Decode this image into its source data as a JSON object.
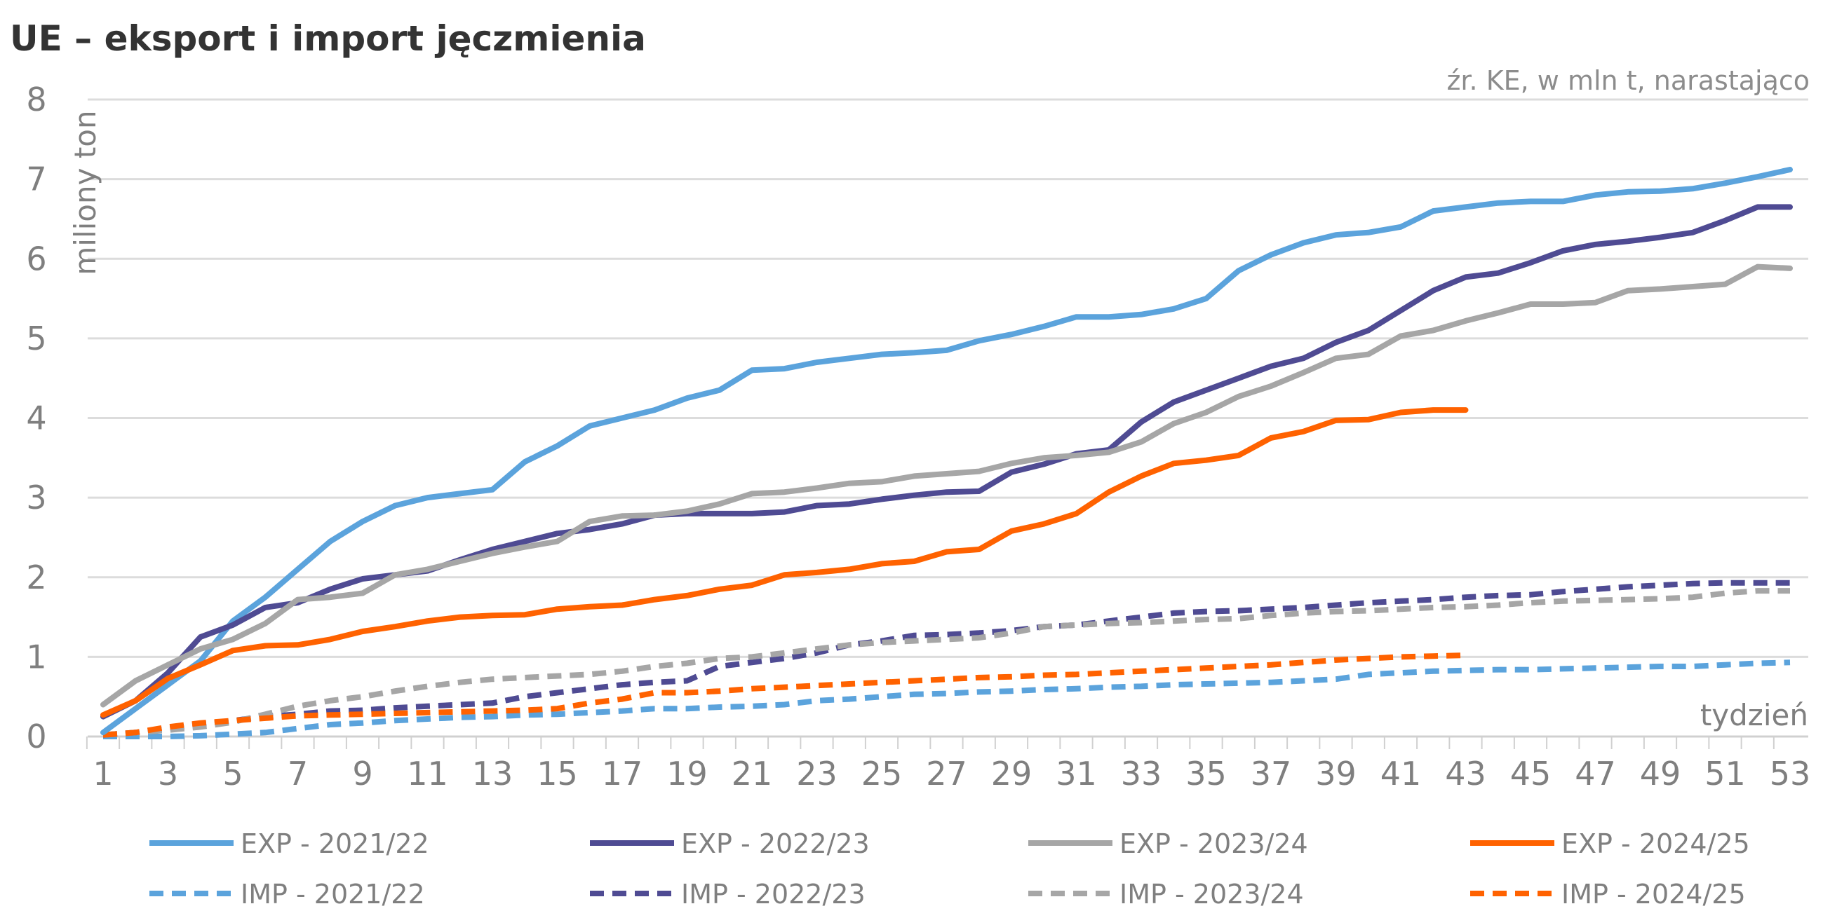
{
  "chart_data": {
    "type": "line",
    "title": "UE – eksport i import jęczmienia",
    "subtitle": "źr. KE, w mln t, narastająco",
    "xlabel": "tydzień",
    "ylabel": "miliony ton",
    "ylim": [
      0,
      8
    ],
    "yticks": [
      "0",
      "1",
      "2",
      "3",
      "4",
      "5",
      "6",
      "7",
      "8"
    ],
    "xlim": [
      1,
      53
    ],
    "xticks": [
      "1",
      "3",
      "5",
      "7",
      "9",
      "11",
      "13",
      "15",
      "17",
      "19",
      "21",
      "23",
      "25",
      "27",
      "29",
      "31",
      "33",
      "35",
      "37",
      "39",
      "41",
      "43",
      "45",
      "47",
      "49",
      "51",
      "53"
    ],
    "grid": "horizontal",
    "legend_position": "bottom",
    "series": [
      {
        "name": "EXP - 2021/22",
        "color": "#5ba3dc",
        "dashed": false,
        "values": [
          0.05,
          0.35,
          0.65,
          0.95,
          1.45,
          1.75,
          2.1,
          2.45,
          2.7,
          2.9,
          3.0,
          3.05,
          3.1,
          3.45,
          3.65,
          3.9,
          4.0,
          4.1,
          4.25,
          4.35,
          4.6,
          4.62,
          4.7,
          4.75,
          4.8,
          4.82,
          4.85,
          4.97,
          5.05,
          5.15,
          5.27,
          5.27,
          5.3,
          5.37,
          5.5,
          5.85,
          6.05,
          6.2,
          6.3,
          6.33,
          6.4,
          6.6,
          6.65,
          6.7,
          6.72,
          6.72,
          6.8,
          6.84,
          6.85,
          6.88,
          6.95,
          7.03,
          7.12
        ]
      },
      {
        "name": "EXP - 2022/23",
        "color": "#4f4b93",
        "dashed": false,
        "values": [
          0.25,
          0.45,
          0.8,
          1.25,
          1.4,
          1.62,
          1.68,
          1.85,
          1.98,
          2.03,
          2.08,
          2.22,
          2.35,
          2.45,
          2.55,
          2.6,
          2.67,
          2.78,
          2.8,
          2.8,
          2.8,
          2.82,
          2.9,
          2.92,
          2.98,
          3.03,
          3.07,
          3.08,
          3.32,
          3.42,
          3.55,
          3.6,
          3.95,
          4.2,
          4.35,
          4.5,
          4.65,
          4.75,
          4.95,
          5.1,
          5.35,
          5.6,
          5.77,
          5.82,
          5.95,
          6.1,
          6.18,
          6.22,
          6.27,
          6.33,
          6.48,
          6.65,
          6.65
        ]
      },
      {
        "name": "EXP - 2023/24",
        "color": "#a6a6a6",
        "dashed": false,
        "values": [
          0.4,
          0.7,
          0.9,
          1.1,
          1.22,
          1.42,
          1.72,
          1.75,
          1.8,
          2.03,
          2.1,
          2.2,
          2.3,
          2.38,
          2.45,
          2.7,
          2.77,
          2.78,
          2.83,
          2.92,
          3.05,
          3.07,
          3.12,
          3.18,
          3.2,
          3.27,
          3.3,
          3.33,
          3.43,
          3.5,
          3.53,
          3.57,
          3.7,
          3.93,
          4.07,
          4.27,
          4.4,
          4.57,
          4.75,
          4.8,
          5.03,
          5.1,
          5.22,
          5.32,
          5.43,
          5.43,
          5.45,
          5.6,
          5.62,
          5.65,
          5.68,
          5.9,
          5.88
        ]
      },
      {
        "name": "EXP - 2024/25",
        "color": "#ff6200",
        "dashed": false,
        "values": [
          0.27,
          0.45,
          0.73,
          0.9,
          1.08,
          1.14,
          1.15,
          1.22,
          1.32,
          1.38,
          1.45,
          1.5,
          1.52,
          1.53,
          1.6,
          1.63,
          1.65,
          1.72,
          1.77,
          1.85,
          1.9,
          2.03,
          2.06,
          2.1,
          2.17,
          2.2,
          2.32,
          2.35,
          2.58,
          2.67,
          2.8,
          3.07,
          3.27,
          3.43,
          3.47,
          3.53,
          3.75,
          3.83,
          3.97,
          3.98,
          4.07,
          4.1,
          4.1
        ]
      },
      {
        "name": "IMP - 2021/22",
        "color": "#5ba3dc",
        "dashed": true,
        "values": [
          0,
          0,
          0,
          0.01,
          0.03,
          0.05,
          0.1,
          0.15,
          0.17,
          0.2,
          0.22,
          0.24,
          0.25,
          0.27,
          0.28,
          0.3,
          0.32,
          0.35,
          0.35,
          0.37,
          0.38,
          0.4,
          0.45,
          0.47,
          0.5,
          0.53,
          0.54,
          0.56,
          0.57,
          0.59,
          0.6,
          0.62,
          0.63,
          0.65,
          0.66,
          0.67,
          0.68,
          0.7,
          0.72,
          0.78,
          0.8,
          0.82,
          0.83,
          0.84,
          0.84,
          0.85,
          0.86,
          0.87,
          0.88,
          0.88,
          0.9,
          0.92,
          0.93
        ]
      },
      {
        "name": "IMP - 2022/23",
        "color": "#4f4b93",
        "dashed": true,
        "values": [
          0.02,
          0.05,
          0.1,
          0.15,
          0.2,
          0.25,
          0.28,
          0.32,
          0.33,
          0.36,
          0.38,
          0.4,
          0.42,
          0.5,
          0.55,
          0.6,
          0.65,
          0.68,
          0.7,
          0.88,
          0.93,
          0.98,
          1.05,
          1.15,
          1.2,
          1.27,
          1.28,
          1.3,
          1.33,
          1.38,
          1.4,
          1.45,
          1.5,
          1.55,
          1.57,
          1.58,
          1.6,
          1.62,
          1.65,
          1.68,
          1.7,
          1.72,
          1.75,
          1.77,
          1.78,
          1.82,
          1.85,
          1.88,
          1.9,
          1.92,
          1.93,
          1.93,
          1.93
        ]
      },
      {
        "name": "IMP - 2023/24",
        "color": "#a6a6a6",
        "dashed": true,
        "values": [
          0.02,
          0.05,
          0.08,
          0.12,
          0.18,
          0.28,
          0.38,
          0.45,
          0.5,
          0.57,
          0.63,
          0.68,
          0.72,
          0.74,
          0.76,
          0.78,
          0.82,
          0.88,
          0.92,
          0.98,
          1.0,
          1.05,
          1.1,
          1.15,
          1.18,
          1.2,
          1.22,
          1.24,
          1.3,
          1.38,
          1.4,
          1.42,
          1.43,
          1.45,
          1.47,
          1.48,
          1.52,
          1.55,
          1.57,
          1.58,
          1.6,
          1.62,
          1.63,
          1.65,
          1.68,
          1.7,
          1.71,
          1.72,
          1.73,
          1.75,
          1.8,
          1.83,
          1.83
        ]
      },
      {
        "name": "IMP - 2024/25",
        "color": "#ff6200",
        "dashed": true,
        "values": [
          0.02,
          0.05,
          0.12,
          0.17,
          0.2,
          0.23,
          0.26,
          0.27,
          0.28,
          0.29,
          0.3,
          0.31,
          0.32,
          0.33,
          0.35,
          0.42,
          0.47,
          0.55,
          0.55,
          0.57,
          0.6,
          0.62,
          0.64,
          0.66,
          0.68,
          0.7,
          0.72,
          0.74,
          0.75,
          0.77,
          0.78,
          0.8,
          0.82,
          0.84,
          0.86,
          0.88,
          0.9,
          0.93,
          0.96,
          0.98,
          1.0,
          1.01,
          1.02
        ]
      }
    ]
  }
}
